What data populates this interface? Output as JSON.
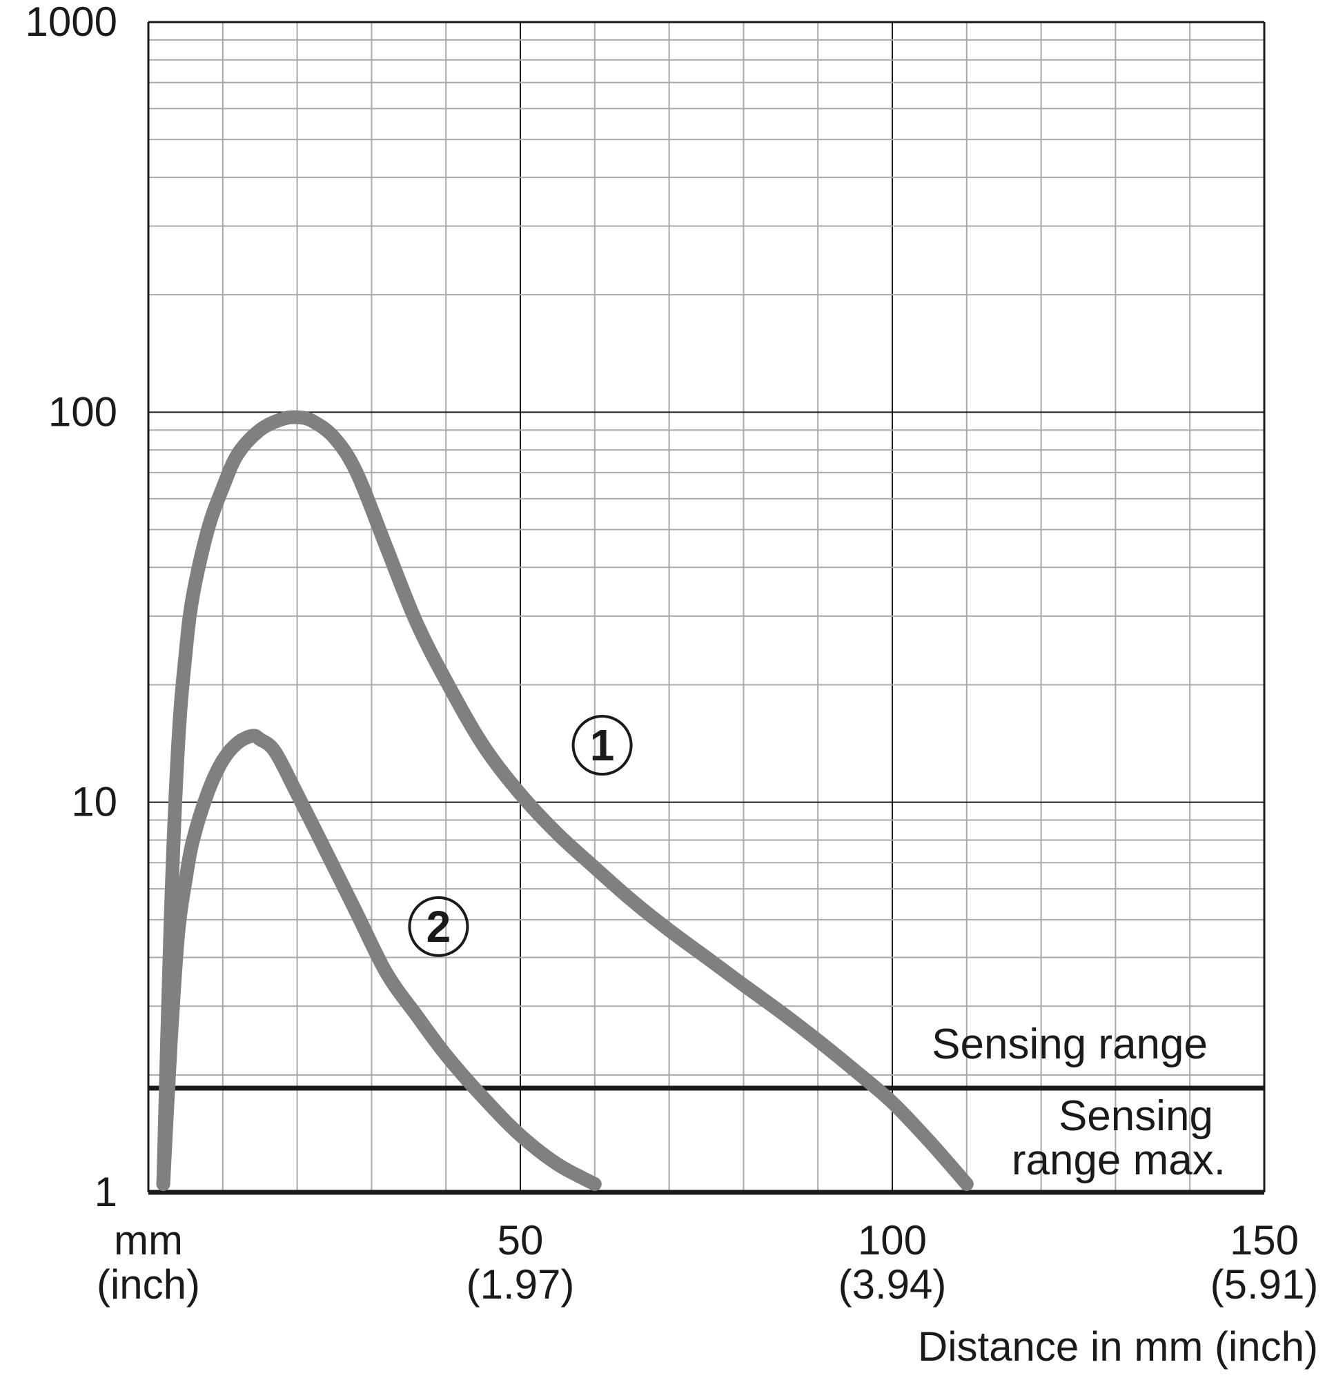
{
  "chart_data": {
    "type": "line",
    "xlabel": "Distance in mm (inch)",
    "x_unit_label": "mm",
    "x_unit_label_alt": "(inch)",
    "xlim": [
      0,
      150
    ],
    "ylim": [
      1,
      1000
    ],
    "y_scale": "log",
    "grid": true,
    "x_ticks": [
      {
        "value": 50,
        "label": "50",
        "sublabel": "(1.97)"
      },
      {
        "value": 100,
        "label": "100",
        "sublabel": "(3.94)"
      },
      {
        "value": 150,
        "label": "150",
        "sublabel": "(5.91)"
      }
    ],
    "y_ticks": [
      {
        "value": 1,
        "label": "1"
      },
      {
        "value": 10,
        "label": "10"
      },
      {
        "value": 100,
        "label": "100"
      },
      {
        "value": 1000,
        "label": "1000"
      }
    ],
    "series": [
      {
        "name": "①",
        "color": "#808083",
        "x": [
          2,
          3,
          4,
          5,
          6,
          8,
          10,
          12,
          15,
          18,
          20,
          22,
          25,
          28,
          32,
          36,
          40,
          45,
          50,
          55,
          60,
          65,
          70,
          75,
          80,
          85,
          90,
          95,
          100,
          105,
          110
        ],
        "y": [
          1.05,
          5,
          14,
          24,
          34,
          50,
          64,
          78,
          90,
          96,
          97,
          95,
          86,
          70,
          45,
          29,
          20.5,
          14,
          10.5,
          8.3,
          6.8,
          5.6,
          4.7,
          4.0,
          3.4,
          2.9,
          2.45,
          2.05,
          1.7,
          1.35,
          1.05
        ]
      },
      {
        "name": "②",
        "color": "#808083",
        "x": [
          2,
          3,
          4,
          5,
          6,
          8,
          10,
          12,
          14,
          15,
          17,
          20,
          24,
          28,
          32,
          36,
          40,
          45,
          50,
          55,
          60
        ],
        "y": [
          1.05,
          2.4,
          4.6,
          6.3,
          8,
          10.6,
          12.8,
          14.2,
          14.8,
          14.5,
          13.5,
          10.5,
          7.4,
          5.2,
          3.65,
          2.85,
          2.25,
          1.75,
          1.4,
          1.18,
          1.05
        ]
      }
    ],
    "reference_lines": [
      {
        "y": 1.85,
        "label_above": "Sensing range",
        "label_below": [
          "Sensing",
          "range max."
        ]
      },
      {
        "y": 1
      }
    ],
    "annotations": [
      {
        "text": "1",
        "series": "①",
        "x": 61,
        "y": 14
      },
      {
        "text": "2",
        "series": "②",
        "x": 39,
        "y": 4.8
      }
    ]
  }
}
